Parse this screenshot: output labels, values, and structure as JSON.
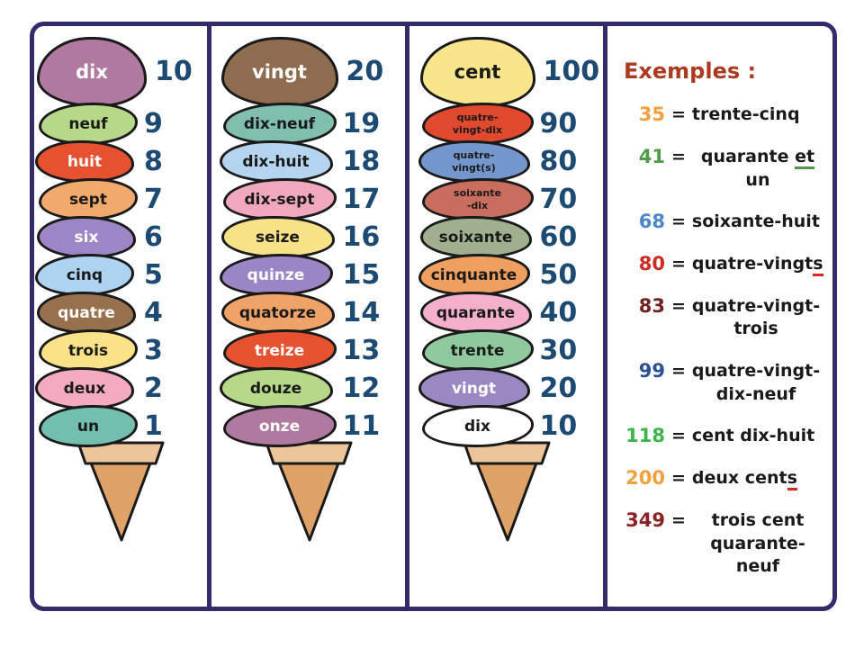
{
  "colors": {
    "border": "#322c6b",
    "number_text": "#1d4a72",
    "examples_title": "#ad3920",
    "cone_fill": "#dfa269",
    "cone_rim": "#ecc59a",
    "scoop_outline": "#1a1a1a"
  },
  "cones": [
    {
      "name": "numbers-1-10",
      "scoops": [
        {
          "label": "dix",
          "number": "10",
          "color": "#b07aa0",
          "text": "#ffffff"
        },
        {
          "label": "neuf",
          "number": "9",
          "color": "#b5d989",
          "text": "#1a1a1a"
        },
        {
          "label": "huit",
          "number": "8",
          "color": "#e6512f",
          "text": "#ffffff"
        },
        {
          "label": "sept",
          "number": "7",
          "color": "#f2a96d",
          "text": "#1a1a1a"
        },
        {
          "label": "six",
          "number": "6",
          "color": "#9c86c6",
          "text": "#ffffff"
        },
        {
          "label": "cinq",
          "number": "5",
          "color": "#aed3f0",
          "text": "#1a1a1a"
        },
        {
          "label": "quatre",
          "number": "4",
          "color": "#97714e",
          "text": "#ffffff"
        },
        {
          "label": "trois",
          "number": "3",
          "color": "#f9e287",
          "text": "#1a1a1a"
        },
        {
          "label": "deux",
          "number": "2",
          "color": "#f4abc0",
          "text": "#1a1a1a"
        },
        {
          "label": "un",
          "number": "1",
          "color": "#72bfb0",
          "text": "#1a1a1a"
        }
      ]
    },
    {
      "name": "numbers-11-20",
      "scoops": [
        {
          "label": "vingt",
          "number": "20",
          "color": "#8d6c50",
          "text": "#ffffff"
        },
        {
          "label": "dix-neuf",
          "number": "19",
          "color": "#80bfae",
          "text": "#1a1a1a"
        },
        {
          "label": "dix-huit",
          "number": "18",
          "color": "#b4d4ef",
          "text": "#1a1a1a"
        },
        {
          "label": "dix-sept",
          "number": "17",
          "color": "#efa8bc",
          "text": "#1a1a1a"
        },
        {
          "label": "seize",
          "number": "16",
          "color": "#f8e287",
          "text": "#1a1a1a"
        },
        {
          "label": "quinze",
          "number": "15",
          "color": "#9b86c5",
          "text": "#ffffff"
        },
        {
          "label": "quatorze",
          "number": "14",
          "color": "#f0a368",
          "text": "#1a1a1a"
        },
        {
          "label": "treize",
          "number": "13",
          "color": "#e6512f",
          "text": "#ffffff"
        },
        {
          "label": "douze",
          "number": "12",
          "color": "#b5d989",
          "text": "#1a1a1a"
        },
        {
          "label": "onze",
          "number": "11",
          "color": "#b07aa0",
          "text": "#ffffff"
        }
      ]
    },
    {
      "name": "numbers-10-100",
      "scoops": [
        {
          "label": "cent",
          "number": "100",
          "color": "#f9e68c",
          "text": "#1a1a1a"
        },
        {
          "label": "quatre-\nvingt-dix",
          "number": "90",
          "color": "#e1492e",
          "text": "#1a1a1a",
          "small": true
        },
        {
          "label": "quatre-\nvingt(s)",
          "number": "80",
          "color": "#7396cd",
          "text": "#1a1a1a",
          "small": true
        },
        {
          "label": "soixante\n-dix",
          "number": "70",
          "color": "#c96e5e",
          "text": "#1a1a1a",
          "small": true
        },
        {
          "label": "soixante",
          "number": "60",
          "color": "#a0b08f",
          "text": "#1a1a1a"
        },
        {
          "label": "cinquante",
          "number": "50",
          "color": "#ef9f60",
          "text": "#1a1a1a"
        },
        {
          "label": "quarante",
          "number": "40",
          "color": "#f4b0ca",
          "text": "#1a1a1a"
        },
        {
          "label": "trente",
          "number": "30",
          "color": "#8fc99d",
          "text": "#1a1a1a"
        },
        {
          "label": "vingt",
          "number": "20",
          "color": "#9b88c2",
          "text": "#ffffff"
        },
        {
          "label": "dix",
          "number": "10",
          "color": "#ffffff",
          "text": "#1a1a1a"
        }
      ]
    }
  ],
  "examples": {
    "title": "Exemples :",
    "equals_sign": "=",
    "items": [
      {
        "num": "35",
        "num_color": "#f0a03c",
        "lines": [
          [
            {
              "t": "trente-cinq"
            }
          ]
        ]
      },
      {
        "num": "41",
        "num_color": "#4e9b47",
        "lines": [
          [
            {
              "t": "quarante "
            },
            {
              "t": "et",
              "u": "#4e9b47"
            },
            {
              "t": " un"
            }
          ]
        ]
      },
      {
        "num": "68",
        "num_color": "#4d86c8",
        "lines": [
          [
            {
              "t": "soixante-huit"
            }
          ]
        ]
      },
      {
        "num": "80",
        "num_color": "#cf2b20",
        "lines": [
          [
            {
              "t": "quatre-vingt"
            },
            {
              "t": "s",
              "u": "#cf2b20"
            }
          ]
        ]
      },
      {
        "num": "83",
        "num_color": "#6e2320",
        "lines": [
          [
            {
              "t": "quatre-vingt-"
            }
          ],
          [
            {
              "t": "trois"
            }
          ]
        ]
      },
      {
        "num": "99",
        "num_color": "#2d4f93",
        "lines": [
          [
            {
              "t": "quatre-vingt-"
            }
          ],
          [
            {
              "t": "dix-neuf"
            }
          ]
        ]
      },
      {
        "num": "118",
        "num_color": "#3db54a",
        "lines": [
          [
            {
              "t": "cent dix-huit"
            }
          ]
        ]
      },
      {
        "num": "200",
        "num_color": "#f0a03c",
        "lines": [
          [
            {
              "t": "deux cent"
            },
            {
              "t": "s",
              "u": "#cf2b20"
            }
          ]
        ]
      },
      {
        "num": "349",
        "num_color": "#8b2025",
        "lines": [
          [
            {
              "t": "trois cent"
            }
          ],
          [
            {
              "t": "quarante-neuf"
            }
          ]
        ]
      }
    ]
  }
}
